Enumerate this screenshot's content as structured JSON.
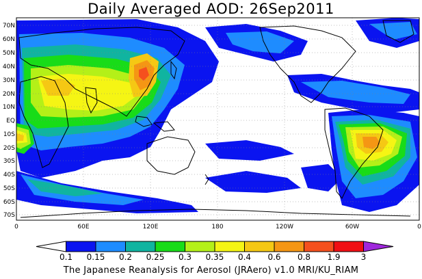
{
  "title": "Daily Averaged AOD: 26Sep2011",
  "footer": "The Japanese Reanalysis for Aerosol (JRAero) v1.0 MRI/KU_RIAM",
  "map": {
    "lat_labels": [
      "70N",
      "60N",
      "50N",
      "40N",
      "30N",
      "20N",
      "10N",
      "EQ",
      "10S",
      "20S",
      "30S",
      "40S",
      "50S",
      "60S",
      "70S"
    ],
    "lon_labels": [
      "0",
      "60E",
      "120E",
      "180",
      "120W",
      "60W",
      "0"
    ]
  },
  "colorbar": {
    "labels": [
      "0.1",
      "0.15",
      "0.2",
      "0.25",
      "0.3",
      "0.35",
      "0.4",
      "0.6",
      "0.8",
      "1.9",
      "3"
    ],
    "colors": [
      "#ffffff",
      "#0a14f0",
      "#1e8cff",
      "#10b4a0",
      "#18dc18",
      "#b4f018",
      "#f5f514",
      "#f5c814",
      "#f59614",
      "#f5501e",
      "#f00f14",
      "#a028dc"
    ]
  },
  "colors": {
    "land_outline": "#000000",
    "grid": "#808080",
    "ocean_background": "#ffffff"
  }
}
